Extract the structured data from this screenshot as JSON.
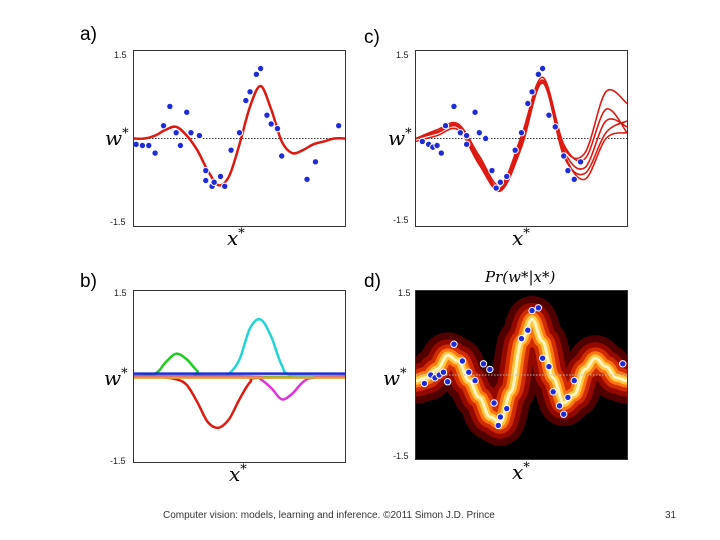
{
  "panels": {
    "a": {
      "label": "a)"
    },
    "b": {
      "label": "b)"
    },
    "c": {
      "label": "c)"
    },
    "d": {
      "label": "d)",
      "title": "Pr(w*|x*)"
    }
  },
  "axes": {
    "xlabel": "x*",
    "ylabel": "w*",
    "ytick_top": "1.5",
    "ytick_bottom": "-1.5"
  },
  "colors": {
    "fit": "#dd1a12",
    "points": "#1f2bd6",
    "dotted": "#333333",
    "basis": [
      "#dd1a12",
      "#22cc22",
      "#22d4d4",
      "#dd33dd",
      "#1f2bd6",
      "#e0a030"
    ]
  },
  "footer": {
    "text": "Computer vision: models, learning and inference.  ©2011 Simon J.D. Prince",
    "page": "31"
  },
  "chart_data": [
    {
      "panel": "a",
      "type": "scatter",
      "xlim": [
        0,
        1
      ],
      "ylim": [
        -1.5,
        1.5
      ],
      "points": {
        "x": [
          0.01,
          0.04,
          0.07,
          0.1,
          0.14,
          0.17,
          0.2,
          0.22,
          0.25,
          0.27,
          0.31,
          0.34,
          0.37,
          0.38,
          0.41,
          0.43,
          0.46,
          0.5,
          0.53,
          0.55,
          0.58,
          0.6,
          0.63,
          0.65,
          0.68,
          0.7,
          0.82,
          0.86,
          0.97,
          0.34
        ],
        "y": [
          -0.1,
          -0.12,
          -0.12,
          -0.25,
          0.22,
          0.55,
          0.1,
          -0.12,
          0.45,
          0.1,
          0.05,
          -0.55,
          -0.82,
          -0.75,
          -0.65,
          -0.82,
          -0.2,
          0.1,
          0.65,
          0.8,
          1.1,
          1.2,
          0.4,
          0.25,
          0.17,
          -0.3,
          -0.7,
          -0.4,
          0.22,
          -0.72
        ]
      },
      "fit": {
        "x": [
          0,
          0.05,
          0.1,
          0.15,
          0.2,
          0.25,
          0.3,
          0.35,
          0.4,
          0.45,
          0.5,
          0.55,
          0.6,
          0.65,
          0.7,
          0.75,
          0.8,
          0.85,
          0.9,
          0.95,
          1
        ],
        "y": [
          0.0,
          0.0,
          0.05,
          0.15,
          0.2,
          0.05,
          -0.2,
          -0.55,
          -0.8,
          -0.65,
          -0.1,
          0.55,
          0.9,
          0.5,
          -0.05,
          -0.25,
          -0.2,
          -0.1,
          -0.05,
          0.0,
          0.0
        ]
      }
    },
    {
      "panel": "c",
      "type": "scatter",
      "xlim": [
        0,
        1
      ],
      "ylim": [
        -1.5,
        1.5
      ],
      "points": {
        "x": [
          0.03,
          0.06,
          0.08,
          0.1,
          0.12,
          0.14,
          0.18,
          0.21,
          0.24,
          0.28,
          0.3,
          0.33,
          0.36,
          0.38,
          0.4,
          0.43,
          0.47,
          0.5,
          0.53,
          0.55,
          0.58,
          0.6,
          0.63,
          0.66,
          0.7,
          0.72,
          0.75,
          0.78,
          0.24
        ],
        "y": [
          -0.05,
          -0.1,
          -0.15,
          -0.12,
          -0.25,
          0.22,
          0.55,
          0.1,
          -0.1,
          0.45,
          0.1,
          0.0,
          -0.55,
          -0.85,
          -0.75,
          -0.65,
          -0.2,
          0.1,
          0.6,
          0.8,
          1.1,
          1.2,
          0.4,
          0.2,
          -0.3,
          -0.55,
          -0.7,
          -0.4,
          0.05
        ]
      },
      "fits": [
        {
          "x": [
            0,
            0.1,
            0.2,
            0.3,
            0.4,
            0.5,
            0.6,
            0.7,
            0.8,
            0.9,
            1
          ],
          "y": [
            0.0,
            0.1,
            0.2,
            -0.4,
            -0.85,
            -0.05,
            1.0,
            -0.2,
            -0.5,
            0.3,
            0.2
          ]
        },
        {
          "x": [
            0,
            0.1,
            0.2,
            0.3,
            0.4,
            0.5,
            0.6,
            0.7,
            0.8,
            0.9,
            1
          ],
          "y": [
            0.0,
            0.15,
            0.25,
            -0.3,
            -0.8,
            0.05,
            1.05,
            -0.1,
            -0.35,
            0.5,
            0.1
          ]
        },
        {
          "x": [
            0,
            0.1,
            0.2,
            0.3,
            0.4,
            0.5,
            0.6,
            0.7,
            0.8,
            0.9,
            1
          ],
          "y": [
            -0.05,
            0.05,
            0.15,
            -0.45,
            -0.9,
            -0.15,
            0.95,
            -0.3,
            -0.6,
            0.1,
            0.3
          ]
        },
        {
          "x": [
            0,
            0.1,
            0.2,
            0.3,
            0.4,
            0.5,
            0.6,
            0.7,
            0.8,
            0.9,
            1
          ],
          "y": [
            0.0,
            0.1,
            0.2,
            -0.35,
            -0.85,
            0.0,
            1.0,
            -0.15,
            -0.25,
            0.8,
            0.6
          ]
        },
        {
          "x": [
            0,
            0.1,
            0.2,
            0.3,
            0.4,
            0.5,
            0.6,
            0.7,
            0.8,
            0.9,
            1
          ],
          "y": [
            0.0,
            0.12,
            0.22,
            -0.42,
            -0.88,
            -0.1,
            0.97,
            -0.25,
            -0.7,
            0.0,
            0.1
          ]
        }
      ]
    },
    {
      "panel": "b",
      "type": "line",
      "xlim": [
        0,
        1
      ],
      "ylim": [
        -1.5,
        1.5
      ],
      "series": [
        {
          "x": [
            0,
            0.1,
            0.2,
            0.25,
            0.3,
            0.35,
            0.4,
            0.45,
            0.5,
            0.55,
            0.6,
            1
          ],
          "y": [
            0.0,
            0.0,
            -0.05,
            -0.15,
            -0.45,
            -0.8,
            -0.9,
            -0.75,
            -0.4,
            -0.1,
            -0.02,
            0.0
          ]
        },
        {
          "x": [
            0,
            0.1,
            0.15,
            0.2,
            0.25,
            0.3,
            0.35,
            1
          ],
          "y": [
            0.0,
            0.05,
            0.25,
            0.4,
            0.3,
            0.1,
            0.0,
            0.0
          ]
        },
        {
          "x": [
            0,
            0.4,
            0.45,
            0.5,
            0.55,
            0.6,
            0.65,
            0.7,
            0.75,
            1
          ],
          "y": [
            0.0,
            0.0,
            0.05,
            0.3,
            0.85,
            1.0,
            0.7,
            0.2,
            0.03,
            0.0
          ]
        },
        {
          "x": [
            0,
            0.55,
            0.6,
            0.65,
            0.7,
            0.75,
            0.8,
            0.85,
            1
          ],
          "y": [
            0.0,
            0.0,
            -0.05,
            -0.2,
            -0.4,
            -0.3,
            -0.1,
            -0.02,
            0.0
          ]
        },
        {
          "x": [
            0,
            1
          ],
          "y": [
            0.05,
            0.05
          ]
        },
        {
          "x": [
            0,
            1
          ],
          "y": [
            -0.02,
            -0.02
          ]
        }
      ]
    },
    {
      "panel": "d",
      "type": "heatmap",
      "title": "Pr(w*|x*)",
      "xlim": [
        0,
        1
      ],
      "ylim": [
        -1.5,
        1.5
      ],
      "mean": {
        "x": [
          0,
          0.05,
          0.1,
          0.15,
          0.2,
          0.25,
          0.3,
          0.35,
          0.4,
          0.45,
          0.5,
          0.55,
          0.6,
          0.65,
          0.7,
          0.75,
          0.8,
          0.85,
          0.9,
          0.95,
          1
        ],
        "y": [
          -0.1,
          -0.05,
          0.1,
          0.35,
          0.25,
          -0.1,
          -0.4,
          -0.75,
          -0.85,
          -0.3,
          0.6,
          1.0,
          0.6,
          -0.05,
          -0.5,
          -0.35,
          0.1,
          0.3,
          0.15,
          -0.05,
          -0.1
        ]
      },
      "points": {
        "x": [
          0.04,
          0.07,
          0.09,
          0.11,
          0.13,
          0.15,
          0.18,
          0.22,
          0.25,
          0.28,
          0.32,
          0.35,
          0.37,
          0.39,
          0.4,
          0.43,
          0.5,
          0.53,
          0.55,
          0.58,
          0.6,
          0.63,
          0.65,
          0.68,
          0.7,
          0.72,
          0.75,
          0.98
        ],
        "y": [
          -0.15,
          0.0,
          -0.05,
          0.0,
          0.05,
          -0.12,
          0.55,
          0.25,
          0.05,
          -0.1,
          0.2,
          0.1,
          -0.5,
          -0.9,
          -0.75,
          -0.6,
          0.65,
          0.8,
          1.15,
          1.2,
          0.3,
          0.15,
          -0.3,
          -0.55,
          -0.7,
          -0.4,
          -0.1,
          0.2
        ]
      }
    }
  ]
}
